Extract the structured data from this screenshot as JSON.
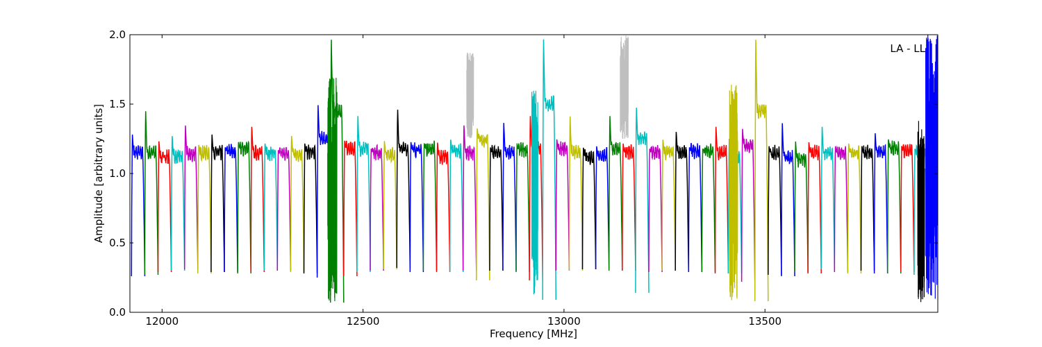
{
  "chart_data": {
    "type": "line",
    "title": "",
    "xlabel": "Frequency [MHz]",
    "ylabel": "Amplitude [arbitrary units]",
    "annotation": "LA - LL",
    "xlim": [
      11920,
      13930
    ],
    "ylim": [
      0.0,
      2.0
    ],
    "x_ticks": [
      12000,
      12500,
      13000,
      13500
    ],
    "x_tick_labels": [
      "12000",
      "12500",
      "13000",
      "13500"
    ],
    "y_ticks": [
      0.0,
      0.5,
      1.0,
      1.5,
      2.0
    ],
    "y_tick_labels": [
      "0.0",
      "0.5",
      "1.0",
      "1.5",
      "2.0"
    ],
    "grid": false,
    "legend": "none",
    "color_cycle": [
      "#0000ff",
      "#008000",
      "#ff0000",
      "#00bfbf",
      "#bf00bf",
      "#bfbf00",
      "#000000"
    ],
    "noise_color": "#bfbfbf",
    "band_shape": "passband of the form minimum → rise to a peak → ripple plateau → minimum",
    "bands": [
      {
        "x": [
          11924,
          11957
        ],
        "min": 0.26,
        "peak": 1.29,
        "plateau": 1.15,
        "color": "blue"
      },
      {
        "x": [
          11957,
          11990
        ],
        "min": 0.27,
        "peak": 1.47,
        "plateau": 1.15,
        "color": "green"
      },
      {
        "x": [
          11990,
          12023
        ],
        "min": 0.29,
        "peak": 1.24,
        "plateau": 1.12,
        "color": "red"
      },
      {
        "x": [
          12023,
          12056
        ],
        "min": 0.3,
        "peak": 1.28,
        "plateau": 1.12,
        "color": "cyan"
      },
      {
        "x": [
          12056,
          12089
        ],
        "min": 0.31,
        "peak": 1.36,
        "plateau": 1.14,
        "color": "magenta"
      },
      {
        "x": [
          12089,
          12122
        ],
        "min": 0.28,
        "peak": 1.21,
        "plateau": 1.15,
        "color": "olive"
      },
      {
        "x": [
          12122,
          12155
        ],
        "min": 0.29,
        "peak": 1.29,
        "plateau": 1.15,
        "color": "black"
      },
      {
        "x": [
          12155,
          12188
        ],
        "min": 0.29,
        "peak": 1.19,
        "plateau": 1.16,
        "color": "blue"
      },
      {
        "x": [
          12188,
          12221
        ],
        "min": 0.28,
        "peak": 1.23,
        "plateau": 1.18,
        "color": "green"
      },
      {
        "x": [
          12221,
          12254
        ],
        "min": 0.29,
        "peak": 1.35,
        "plateau": 1.15,
        "color": "red"
      },
      {
        "x": [
          12254,
          12287
        ],
        "min": 0.3,
        "peak": 1.22,
        "plateau": 1.15,
        "color": "cyan"
      },
      {
        "x": [
          12287,
          12320
        ],
        "min": 0.3,
        "peak": 1.17,
        "plateau": 1.14,
        "color": "magenta"
      },
      {
        "x": [
          12320,
          12353
        ],
        "min": 0.29,
        "peak": 1.28,
        "plateau": 1.14,
        "color": "olive"
      },
      {
        "x": [
          12353,
          12386
        ],
        "min": 0.28,
        "peak": 1.22,
        "plateau": 1.15,
        "color": "black"
      },
      {
        "x": [
          12386,
          12419
        ],
        "min": 0.25,
        "peak": 1.51,
        "plateau": 1.25,
        "color": "blue"
      },
      {
        "x": [
          12419,
          12452
        ],
        "min": 0.07,
        "peak": 2.0,
        "plateau": 1.45,
        "color": "green"
      },
      {
        "x": [
          12452,
          12485
        ],
        "min": 0.26,
        "peak": 1.24,
        "plateau": 1.18,
        "color": "red"
      },
      {
        "x": [
          12485,
          12518
        ],
        "min": 0.29,
        "peak": 1.43,
        "plateau": 1.18,
        "color": "cyan"
      },
      {
        "x": [
          12518,
          12551
        ],
        "min": 0.3,
        "peak": 1.18,
        "plateau": 1.15,
        "color": "magenta"
      },
      {
        "x": [
          12551,
          12584
        ],
        "min": 0.31,
        "peak": 1.24,
        "plateau": 1.14,
        "color": "olive"
      },
      {
        "x": [
          12584,
          12617
        ],
        "min": 0.32,
        "peak": 1.48,
        "plateau": 1.18,
        "color": "black"
      },
      {
        "x": [
          12617,
          12650
        ],
        "min": 0.29,
        "peak": 1.23,
        "plateau": 1.17,
        "color": "blue"
      },
      {
        "x": [
          12650,
          12683
        ],
        "min": 0.3,
        "peak": 1.22,
        "plateau": 1.18,
        "color": "green"
      },
      {
        "x": [
          12683,
          12716
        ],
        "min": 0.29,
        "peak": 1.23,
        "plateau": 1.12,
        "color": "red"
      },
      {
        "x": [
          12716,
          12749
        ],
        "min": 0.29,
        "peak": 1.25,
        "plateau": 1.16,
        "color": "cyan"
      },
      {
        "x": [
          12749,
          12782
        ],
        "min": 0.3,
        "peak": 1.36,
        "plateau": 1.15,
        "color": "magenta"
      },
      {
        "x": [
          12782,
          12815
        ],
        "min": 0.23,
        "peak": 1.33,
        "plateau": 1.24,
        "color": "olive"
      },
      {
        "x": [
          12815,
          12848
        ],
        "min": 0.3,
        "peak": 1.19,
        "plateau": 1.15,
        "color": "black"
      },
      {
        "x": [
          12848,
          12881
        ],
        "min": 0.3,
        "peak": 1.38,
        "plateau": 1.15,
        "color": "blue"
      },
      {
        "x": [
          12881,
          12914
        ],
        "min": 0.29,
        "peak": 1.22,
        "plateau": 1.17,
        "color": "green"
      },
      {
        "x": [
          12914,
          12947
        ],
        "min": 0.23,
        "peak": 1.43,
        "plateau": 1.18,
        "color": "red"
      },
      {
        "x": [
          12947,
          12980
        ],
        "min": 0.09,
        "peak": 2.0,
        "plateau": 1.5,
        "color": "cyan"
      },
      {
        "x": [
          12980,
          13013
        ],
        "min": 0.3,
        "peak": 1.25,
        "plateau": 1.18,
        "color": "magenta"
      },
      {
        "x": [
          13013,
          13046
        ],
        "min": 0.3,
        "peak": 1.43,
        "plateau": 1.15,
        "color": "olive"
      },
      {
        "x": [
          13046,
          13079
        ],
        "min": 0.31,
        "peak": 1.19,
        "plateau": 1.12,
        "color": "black"
      },
      {
        "x": [
          13079,
          13112
        ],
        "min": 0.31,
        "peak": 1.2,
        "plateau": 1.13,
        "color": "blue"
      },
      {
        "x": [
          13112,
          13145
        ],
        "min": 0.3,
        "peak": 1.43,
        "plateau": 1.18,
        "color": "green"
      },
      {
        "x": [
          13145,
          13178
        ],
        "min": 0.3,
        "peak": 1.22,
        "plateau": 1.15,
        "color": "red"
      },
      {
        "x": [
          13178,
          13211
        ],
        "min": 0.14,
        "peak": 1.49,
        "plateau": 1.25,
        "color": "cyan"
      },
      {
        "x": [
          13211,
          13244
        ],
        "min": 0.29,
        "peak": 1.18,
        "plateau": 1.15,
        "color": "magenta"
      },
      {
        "x": [
          13244,
          13277
        ],
        "min": 0.3,
        "peak": 1.25,
        "plateau": 1.15,
        "color": "olive"
      },
      {
        "x": [
          13277,
          13310
        ],
        "min": 0.3,
        "peak": 1.31,
        "plateau": 1.15,
        "color": "black"
      },
      {
        "x": [
          13310,
          13343
        ],
        "min": 0.29,
        "peak": 1.19,
        "plateau": 1.16,
        "color": "blue"
      },
      {
        "x": [
          13343,
          13376
        ],
        "min": 0.29,
        "peak": 1.18,
        "plateau": 1.16,
        "color": "green"
      },
      {
        "x": [
          13376,
          13409
        ],
        "min": 0.28,
        "peak": 1.35,
        "plateau": 1.15,
        "color": "red"
      },
      {
        "x": [
          13409,
          13442
        ],
        "min": 0.28,
        "peak": 1.26,
        "plateau": 1.12,
        "color": "cyan"
      },
      {
        "x": [
          13442,
          13475
        ],
        "min": 0.22,
        "peak": 1.33,
        "plateau": 1.2,
        "color": "magenta"
      },
      {
        "x": [
          13475,
          13508
        ],
        "min": 0.08,
        "peak": 2.0,
        "plateau": 1.45,
        "color": "olive"
      },
      {
        "x": [
          13508,
          13541
        ],
        "min": 0.27,
        "peak": 1.2,
        "plateau": 1.15,
        "color": "black"
      },
      {
        "x": [
          13541,
          13574
        ],
        "min": 0.26,
        "peak": 1.38,
        "plateau": 1.12,
        "color": "blue"
      },
      {
        "x": [
          13574,
          13607
        ],
        "min": 0.29,
        "peak": 1.24,
        "plateau": 1.1,
        "color": "green"
      },
      {
        "x": [
          13607,
          13640
        ],
        "min": 0.28,
        "peak": 1.23,
        "plateau": 1.15,
        "color": "red"
      },
      {
        "x": [
          13640,
          13673
        ],
        "min": 0.31,
        "peak": 1.35,
        "plateau": 1.15,
        "color": "cyan"
      },
      {
        "x": [
          13673,
          13706
        ],
        "min": 0.29,
        "peak": 1.2,
        "plateau": 1.15,
        "color": "magenta"
      },
      {
        "x": [
          13706,
          13739
        ],
        "min": 0.28,
        "peak": 1.22,
        "plateau": 1.15,
        "color": "olive"
      },
      {
        "x": [
          13739,
          13772
        ],
        "min": 0.3,
        "peak": 1.2,
        "plateau": 1.15,
        "color": "black"
      },
      {
        "x": [
          13772,
          13805
        ],
        "min": 0.28,
        "peak": 1.3,
        "plateau": 1.15,
        "color": "blue"
      },
      {
        "x": [
          13805,
          13838
        ],
        "min": 0.28,
        "peak": 1.25,
        "plateau": 1.18,
        "color": "green"
      },
      {
        "x": [
          13838,
          13871
        ],
        "min": 0.29,
        "peak": 1.2,
        "plateau": 1.16,
        "color": "red"
      },
      {
        "x": [
          13871,
          13904
        ],
        "min": 0.27,
        "peak": 1.18,
        "plateau": 1.15,
        "color": "cyan"
      },
      {
        "x": [
          13904,
          13937
        ],
        "min": 0.28,
        "peak": 1.33,
        "plateau": 1.12,
        "color": "magenta"
      }
    ],
    "noise_bursts": [
      {
        "x": [
          12758,
          12775
        ],
        "min": 1.25,
        "max": 1.88,
        "color": "gray"
      },
      {
        "x": [
          13140,
          13160
        ],
        "min": 1.25,
        "max": 2.0,
        "color": "gray"
      },
      {
        "x": [
          12920,
          12935
        ],
        "min": 0.08,
        "max": 1.6,
        "color": "cyan"
      },
      {
        "x": [
          13412,
          13432
        ],
        "min": 0.08,
        "max": 1.65,
        "color": "olive"
      },
      {
        "x": [
          12412,
          12435
        ],
        "min": 0.07,
        "max": 1.7,
        "color": "green"
      },
      {
        "x": [
          13880,
          13897
        ],
        "min": 0.06,
        "max": 1.38,
        "color": "black"
      },
      {
        "x": [
          13900,
          13930
        ],
        "min": 0.08,
        "max": 2.0,
        "color": "blue"
      }
    ]
  }
}
